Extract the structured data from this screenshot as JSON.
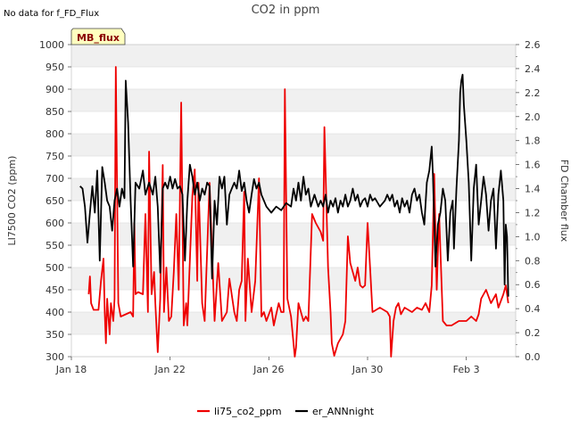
{
  "chart_data": {
    "type": "line",
    "title": "CO2 in ppm",
    "note": "No data for f_FD_Flux",
    "badge": "MB_flux",
    "xlabel": "",
    "ylabel_left": "LI7500 CO2 (ppm)",
    "ylabel_right": "FD Chamber flux",
    "x_ticks": [
      {
        "day": 0,
        "label": "Jan 18"
      },
      {
        "day": 4,
        "label": "Jan 22"
      },
      {
        "day": 8,
        "label": "Jan 26"
      },
      {
        "day": 12,
        "label": "Jan 30"
      },
      {
        "day": 16,
        "label": "Feb 3"
      }
    ],
    "xlim": [
      0,
      18
    ],
    "ylim_left": [
      300,
      1000
    ],
    "yticks_left": [
      300,
      350,
      400,
      450,
      500,
      550,
      600,
      650,
      700,
      750,
      800,
      850,
      900,
      950,
      1000
    ],
    "ylim_right": [
      0.0,
      2.6
    ],
    "yticks_right": [
      "0.0",
      "0.2",
      "0.4",
      "0.6",
      "0.8",
      "1.0",
      "1.2",
      "1.4",
      "1.6",
      "1.8",
      "2.0",
      "2.2",
      "2.4",
      "2.6"
    ],
    "series": [
      {
        "name": "li75_co2_ppm",
        "axis": "left",
        "color": "#ee0000",
        "points": [
          [
            0.7,
            440
          ],
          [
            0.75,
            480
          ],
          [
            0.8,
            420
          ],
          [
            0.9,
            405
          ],
          [
            1.1,
            405
          ],
          [
            1.2,
            470
          ],
          [
            1.3,
            520
          ],
          [
            1.35,
            400
          ],
          [
            1.4,
            330
          ],
          [
            1.45,
            430
          ],
          [
            1.55,
            350
          ],
          [
            1.6,
            420
          ],
          [
            1.7,
            380
          ],
          [
            1.75,
            430
          ],
          [
            1.8,
            950
          ],
          [
            1.9,
            420
          ],
          [
            2.0,
            390
          ],
          [
            2.2,
            395
          ],
          [
            2.4,
            400
          ],
          [
            2.5,
            390
          ],
          [
            2.55,
            600
          ],
          [
            2.6,
            440
          ],
          [
            2.7,
            445
          ],
          [
            2.9,
            440
          ],
          [
            3.0,
            620
          ],
          [
            3.1,
            400
          ],
          [
            3.15,
            760
          ],
          [
            3.25,
            440
          ],
          [
            3.35,
            490
          ],
          [
            3.4,
            420
          ],
          [
            3.5,
            310
          ],
          [
            3.6,
            430
          ],
          [
            3.7,
            730
          ],
          [
            3.75,
            400
          ],
          [
            3.85,
            500
          ],
          [
            3.95,
            380
          ],
          [
            4.05,
            390
          ],
          [
            4.15,
            490
          ],
          [
            4.25,
            620
          ],
          [
            4.35,
            450
          ],
          [
            4.45,
            870
          ],
          [
            4.55,
            370
          ],
          [
            4.65,
            420
          ],
          [
            4.7,
            370
          ],
          [
            4.9,
            660
          ],
          [
            5.0,
            720
          ],
          [
            5.1,
            470
          ],
          [
            5.15,
            690
          ],
          [
            5.3,
            420
          ],
          [
            5.4,
            380
          ],
          [
            5.6,
            690
          ],
          [
            5.8,
            380
          ],
          [
            5.95,
            510
          ],
          [
            6.1,
            380
          ],
          [
            6.3,
            400
          ],
          [
            6.4,
            475
          ],
          [
            6.6,
            400
          ],
          [
            6.7,
            380
          ],
          [
            6.8,
            450
          ],
          [
            6.9,
            470
          ],
          [
            7.0,
            670
          ],
          [
            7.05,
            380
          ],
          [
            7.15,
            520
          ],
          [
            7.3,
            400
          ],
          [
            7.45,
            470
          ],
          [
            7.6,
            700
          ],
          [
            7.7,
            390
          ],
          [
            7.8,
            400
          ],
          [
            7.9,
            380
          ],
          [
            8.1,
            410
          ],
          [
            8.2,
            370
          ],
          [
            8.3,
            395
          ],
          [
            8.4,
            420
          ],
          [
            8.5,
            400
          ],
          [
            8.6,
            400
          ],
          [
            8.65,
            900
          ],
          [
            8.75,
            430
          ],
          [
            8.9,
            390
          ],
          [
            9.0,
            330
          ],
          [
            9.05,
            300
          ],
          [
            9.1,
            320
          ],
          [
            9.2,
            420
          ],
          [
            9.4,
            380
          ],
          [
            9.5,
            390
          ],
          [
            9.6,
            380
          ],
          [
            9.75,
            620
          ],
          [
            9.9,
            600
          ],
          [
            10.1,
            580
          ],
          [
            10.2,
            560
          ],
          [
            10.25,
            815
          ],
          [
            10.4,
            500
          ],
          [
            10.5,
            400
          ],
          [
            10.55,
            330
          ],
          [
            10.65,
            302
          ],
          [
            10.8,
            330
          ],
          [
            11.0,
            350
          ],
          [
            11.1,
            380
          ],
          [
            11.2,
            570
          ],
          [
            11.3,
            510
          ],
          [
            11.5,
            470
          ],
          [
            11.6,
            500
          ],
          [
            11.7,
            460
          ],
          [
            11.8,
            455
          ],
          [
            11.9,
            460
          ],
          [
            12.0,
            600
          ],
          [
            12.1,
            500
          ],
          [
            12.2,
            400
          ],
          [
            12.5,
            410
          ],
          [
            12.8,
            400
          ],
          [
            12.9,
            390
          ],
          [
            12.95,
            300
          ],
          [
            13.05,
            380
          ],
          [
            13.15,
            410
          ],
          [
            13.25,
            420
          ],
          [
            13.35,
            395
          ],
          [
            13.5,
            410
          ],
          [
            13.8,
            400
          ],
          [
            14.0,
            410
          ],
          [
            14.2,
            405
          ],
          [
            14.35,
            420
          ],
          [
            14.5,
            400
          ],
          [
            14.6,
            460
          ],
          [
            14.7,
            710
          ],
          [
            14.8,
            450
          ],
          [
            14.9,
            620
          ],
          [
            15.05,
            380
          ],
          [
            15.2,
            370
          ],
          [
            15.4,
            370
          ],
          [
            15.7,
            380
          ],
          [
            16.0,
            380
          ],
          [
            16.2,
            390
          ],
          [
            16.4,
            380
          ],
          [
            16.5,
            395
          ],
          [
            16.6,
            430
          ],
          [
            16.8,
            450
          ],
          [
            17.0,
            420
          ],
          [
            17.2,
            440
          ],
          [
            17.3,
            410
          ],
          [
            17.5,
            440
          ],
          [
            17.6,
            460
          ],
          [
            17.7,
            420
          ]
        ]
      },
      {
        "name": "er_ANNnight",
        "axis": "right",
        "color": "#000000",
        "points": [
          [
            0.35,
            1.42
          ],
          [
            0.45,
            1.4
          ],
          [
            0.55,
            1.25
          ],
          [
            0.65,
            0.95
          ],
          [
            0.75,
            1.2
          ],
          [
            0.85,
            1.42
          ],
          [
            0.95,
            1.2
          ],
          [
            1.05,
            1.55
          ],
          [
            1.15,
            0.8
          ],
          [
            1.25,
            1.58
          ],
          [
            1.35,
            1.45
          ],
          [
            1.45,
            1.3
          ],
          [
            1.55,
            1.25
          ],
          [
            1.65,
            1.05
          ],
          [
            1.75,
            1.3
          ],
          [
            1.85,
            1.4
          ],
          [
            1.95,
            1.25
          ],
          [
            2.05,
            1.4
          ],
          [
            2.15,
            1.32
          ],
          [
            2.2,
            2.3
          ],
          [
            2.3,
            1.95
          ],
          [
            2.4,
            1.3
          ],
          [
            2.5,
            0.75
          ],
          [
            2.6,
            1.45
          ],
          [
            2.75,
            1.4
          ],
          [
            2.9,
            1.55
          ],
          [
            3.0,
            1.35
          ],
          [
            3.15,
            1.45
          ],
          [
            3.3,
            1.35
          ],
          [
            3.4,
            1.5
          ],
          [
            3.5,
            1.25
          ],
          [
            3.6,
            0.7
          ],
          [
            3.7,
            1.4
          ],
          [
            3.8,
            1.45
          ],
          [
            3.9,
            1.4
          ],
          [
            4.0,
            1.5
          ],
          [
            4.1,
            1.4
          ],
          [
            4.2,
            1.48
          ],
          [
            4.3,
            1.4
          ],
          [
            4.4,
            1.42
          ],
          [
            4.5,
            1.35
          ],
          [
            4.6,
            0.8
          ],
          [
            4.7,
            1.3
          ],
          [
            4.8,
            1.6
          ],
          [
            4.9,
            1.5
          ],
          [
            5.0,
            1.35
          ],
          [
            5.1,
            1.45
          ],
          [
            5.2,
            1.3
          ],
          [
            5.3,
            1.4
          ],
          [
            5.4,
            1.35
          ],
          [
            5.5,
            1.45
          ],
          [
            5.6,
            1.42
          ],
          [
            5.7,
            0.65
          ],
          [
            5.8,
            1.3
          ],
          [
            5.9,
            1.1
          ],
          [
            6.0,
            1.5
          ],
          [
            6.1,
            1.4
          ],
          [
            6.2,
            1.5
          ],
          [
            6.3,
            1.1
          ],
          [
            6.4,
            1.35
          ],
          [
            6.5,
            1.4
          ],
          [
            6.6,
            1.45
          ],
          [
            6.7,
            1.4
          ],
          [
            6.8,
            1.55
          ],
          [
            6.9,
            1.38
          ],
          [
            7.0,
            1.45
          ],
          [
            7.1,
            1.3
          ],
          [
            7.2,
            1.2
          ],
          [
            7.3,
            1.35
          ],
          [
            7.4,
            1.48
          ],
          [
            7.5,
            1.4
          ],
          [
            7.6,
            1.45
          ],
          [
            7.7,
            1.35
          ],
          [
            7.9,
            1.25
          ],
          [
            8.1,
            1.2
          ],
          [
            8.3,
            1.25
          ],
          [
            8.5,
            1.22
          ],
          [
            8.7,
            1.28
          ],
          [
            8.9,
            1.25
          ],
          [
            9.0,
            1.4
          ],
          [
            9.1,
            1.3
          ],
          [
            9.2,
            1.45
          ],
          [
            9.3,
            1.3
          ],
          [
            9.4,
            1.5
          ],
          [
            9.5,
            1.35
          ],
          [
            9.6,
            1.4
          ],
          [
            9.7,
            1.25
          ],
          [
            9.85,
            1.35
          ],
          [
            10.0,
            1.25
          ],
          [
            10.1,
            1.3
          ],
          [
            10.2,
            1.25
          ],
          [
            10.3,
            1.35
          ],
          [
            10.4,
            1.2
          ],
          [
            10.5,
            1.3
          ],
          [
            10.6,
            1.25
          ],
          [
            10.7,
            1.32
          ],
          [
            10.8,
            1.2
          ],
          [
            10.9,
            1.3
          ],
          [
            11.0,
            1.25
          ],
          [
            11.1,
            1.35
          ],
          [
            11.2,
            1.25
          ],
          [
            11.3,
            1.3
          ],
          [
            11.4,
            1.4
          ],
          [
            11.5,
            1.3
          ],
          [
            11.6,
            1.35
          ],
          [
            11.7,
            1.25
          ],
          [
            11.8,
            1.3
          ],
          [
            11.9,
            1.32
          ],
          [
            12.0,
            1.25
          ],
          [
            12.1,
            1.35
          ],
          [
            12.2,
            1.3
          ],
          [
            12.3,
            1.32
          ],
          [
            12.5,
            1.25
          ],
          [
            12.7,
            1.3
          ],
          [
            12.8,
            1.35
          ],
          [
            12.9,
            1.3
          ],
          [
            13.0,
            1.35
          ],
          [
            13.1,
            1.25
          ],
          [
            13.2,
            1.3
          ],
          [
            13.3,
            1.2
          ],
          [
            13.4,
            1.32
          ],
          [
            13.5,
            1.25
          ],
          [
            13.6,
            1.3
          ],
          [
            13.7,
            1.2
          ],
          [
            13.8,
            1.35
          ],
          [
            13.9,
            1.4
          ],
          [
            14.0,
            1.3
          ],
          [
            14.1,
            1.35
          ],
          [
            14.2,
            1.2
          ],
          [
            14.3,
            1.1
          ],
          [
            14.4,
            1.45
          ],
          [
            14.5,
            1.55
          ],
          [
            14.6,
            1.75
          ],
          [
            14.65,
            1.5
          ],
          [
            14.75,
            0.75
          ],
          [
            14.85,
            1.1
          ],
          [
            14.95,
            1.2
          ],
          [
            15.05,
            1.4
          ],
          [
            15.15,
            1.3
          ],
          [
            15.25,
            0.8
          ],
          [
            15.35,
            1.2
          ],
          [
            15.45,
            1.3
          ],
          [
            15.5,
            0.9
          ],
          [
            15.6,
            1.4
          ],
          [
            15.7,
            1.8
          ],
          [
            15.75,
            2.2
          ],
          [
            15.8,
            2.3
          ],
          [
            15.85,
            2.35
          ],
          [
            15.9,
            2.1
          ],
          [
            16.0,
            1.8
          ],
          [
            16.1,
            1.45
          ],
          [
            16.2,
            0.8
          ],
          [
            16.3,
            1.4
          ],
          [
            16.4,
            1.6
          ],
          [
            16.5,
            1.1
          ],
          [
            16.6,
            1.3
          ],
          [
            16.7,
            1.5
          ],
          [
            16.8,
            1.35
          ],
          [
            16.9,
            1.05
          ],
          [
            17.0,
            1.3
          ],
          [
            17.1,
            1.4
          ],
          [
            17.2,
            0.9
          ],
          [
            17.3,
            1.35
          ],
          [
            17.4,
            1.55
          ],
          [
            17.5,
            1.3
          ],
          [
            17.55,
            0.6
          ],
          [
            17.6,
            1.1
          ],
          [
            17.65,
            1.0
          ],
          [
            17.7,
            0.5
          ]
        ]
      }
    ],
    "legend": {
      "placement": "bottom-center",
      "entries": [
        "li75_co2_ppm",
        "er_ANNnight"
      ]
    },
    "bands": "alternating light gray horizontal bands",
    "grid": true
  }
}
